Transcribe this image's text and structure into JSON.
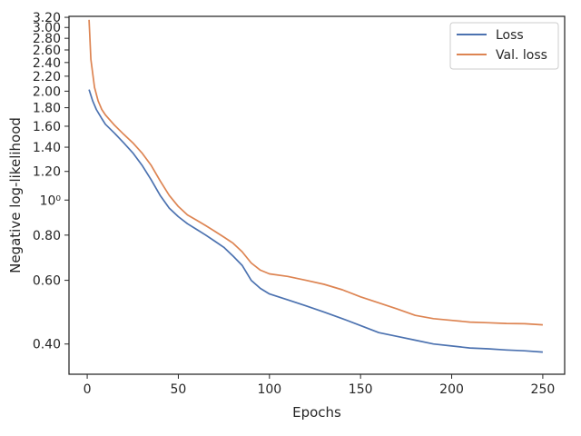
{
  "chart_data": {
    "type": "line",
    "title": "",
    "xlabel": "Epochs",
    "ylabel": "Negative log-likelihood",
    "y_scale": "log",
    "xlim": [
      -10,
      262
    ],
    "ylim": [
      0.33,
      3.22
    ],
    "x_ticks": [
      0,
      50,
      100,
      150,
      200,
      250
    ],
    "x_tick_labels": [
      "0",
      "50",
      "100",
      "150",
      "200",
      "250"
    ],
    "y_ticks": [
      0.4,
      0.6,
      0.8,
      1.0,
      1.2,
      1.4,
      1.6,
      1.8,
      2.0,
      2.2,
      2.4,
      2.6,
      2.8,
      3.0,
      3.2
    ],
    "y_tick_labels": [
      "0.40",
      "0.60",
      "0.80",
      "10⁰",
      "1.20",
      "1.40",
      "1.60",
      "1.80",
      "2.00",
      "2.20",
      "2.40",
      "2.60",
      "2.80",
      "3.00",
      "3.20"
    ],
    "grid": false,
    "legend_position": "top-right",
    "series": [
      {
        "name": "Loss",
        "color": "#4c72b0",
        "points": [
          [
            1,
            2.02
          ],
          [
            3,
            1.88
          ],
          [
            5,
            1.78
          ],
          [
            8,
            1.68
          ],
          [
            10,
            1.62
          ],
          [
            15,
            1.53
          ],
          [
            20,
            1.44
          ],
          [
            25,
            1.35
          ],
          [
            30,
            1.25
          ],
          [
            35,
            1.14
          ],
          [
            40,
            1.03
          ],
          [
            45,
            0.95
          ],
          [
            50,
            0.9
          ],
          [
            55,
            0.86
          ],
          [
            60,
            0.83
          ],
          [
            65,
            0.8
          ],
          [
            70,
            0.77
          ],
          [
            75,
            0.74
          ],
          [
            80,
            0.7
          ],
          [
            85,
            0.66
          ],
          [
            90,
            0.6
          ],
          [
            95,
            0.57
          ],
          [
            100,
            0.55
          ],
          [
            110,
            0.53
          ],
          [
            120,
            0.51
          ],
          [
            130,
            0.49
          ],
          [
            140,
            0.47
          ],
          [
            150,
            0.45
          ],
          [
            160,
            0.43
          ],
          [
            170,
            0.42
          ],
          [
            180,
            0.41
          ],
          [
            190,
            0.4
          ],
          [
            200,
            0.395
          ],
          [
            210,
            0.39
          ],
          [
            220,
            0.388
          ],
          [
            230,
            0.385
          ],
          [
            240,
            0.383
          ],
          [
            250,
            0.38
          ]
        ]
      },
      {
        "name": "Val. loss",
        "color": "#dd8452",
        "points": [
          [
            1,
            3.15
          ],
          [
            2,
            2.45
          ],
          [
            4,
            2.05
          ],
          [
            6,
            1.88
          ],
          [
            8,
            1.78
          ],
          [
            10,
            1.72
          ],
          [
            15,
            1.61
          ],
          [
            20,
            1.52
          ],
          [
            25,
            1.44
          ],
          [
            30,
            1.35
          ],
          [
            35,
            1.25
          ],
          [
            40,
            1.13
          ],
          [
            45,
            1.03
          ],
          [
            50,
            0.96
          ],
          [
            55,
            0.91
          ],
          [
            60,
            0.88
          ],
          [
            65,
            0.85
          ],
          [
            70,
            0.82
          ],
          [
            75,
            0.79
          ],
          [
            80,
            0.76
          ],
          [
            85,
            0.72
          ],
          [
            90,
            0.67
          ],
          [
            95,
            0.64
          ],
          [
            100,
            0.625
          ],
          [
            110,
            0.615
          ],
          [
            120,
            0.6
          ],
          [
            130,
            0.585
          ],
          [
            140,
            0.565
          ],
          [
            150,
            0.54
          ],
          [
            160,
            0.52
          ],
          [
            170,
            0.5
          ],
          [
            180,
            0.48
          ],
          [
            190,
            0.47
          ],
          [
            200,
            0.465
          ],
          [
            210,
            0.46
          ],
          [
            220,
            0.458
          ],
          [
            230,
            0.456
          ],
          [
            240,
            0.455
          ],
          [
            250,
            0.452
          ]
        ]
      }
    ]
  }
}
